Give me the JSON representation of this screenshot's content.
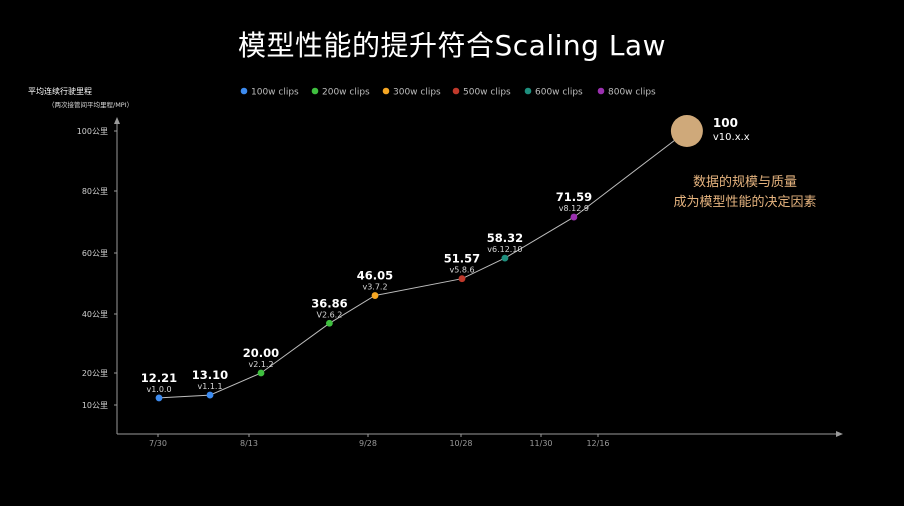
{
  "title": "模型性能的提升符合Scaling Law",
  "chart_data": {
    "type": "line",
    "ylabel": "平均连续行驶里程",
    "ylabel_sub": "（两次接管间平均里程/MPI）",
    "y_ticks": [
      {
        "label": "10公里",
        "value": 10
      },
      {
        "label": "20公里",
        "value": 20
      },
      {
        "label": "40公里",
        "value": 40
      },
      {
        "label": "60公里",
        "value": 60
      },
      {
        "label": "80公里",
        "value": 80
      },
      {
        "label": "100公里",
        "value": 100
      }
    ],
    "x_ticks": [
      "7/30",
      "8/13",
      "9/28",
      "10/28",
      "11/30",
      "12/16"
    ],
    "legend": [
      {
        "label": "100w clips",
        "color": "#3d8bef"
      },
      {
        "label": "200w clips",
        "color": "#3fbf3f"
      },
      {
        "label": "300w clips",
        "color": "#f5a623"
      },
      {
        "label": "500w clips",
        "color": "#c0392b"
      },
      {
        "label": "600w clips",
        "color": "#1e8f7e"
      },
      {
        "label": "800w clips",
        "color": "#9b30b0"
      }
    ],
    "points": [
      {
        "value": 12.21,
        "label": "12.21",
        "version": "v1.0.0",
        "color": "#3d8bef",
        "x_pos": 0.0
      },
      {
        "value": 13.1,
        "label": "13.10",
        "version": "v1.1.1",
        "color": "#3d8bef",
        "x_pos": 0.5
      },
      {
        "value": 20.0,
        "label": "20.00",
        "version": "v2.1.2",
        "color": "#3fbf3f",
        "x_pos": 1.0
      },
      {
        "value": 36.86,
        "label": "36.86",
        "version": "V2.6.2",
        "color": "#3fbf3f",
        "x_pos": 1.6
      },
      {
        "value": 46.05,
        "label": "46.05",
        "version": "v3.7.2",
        "color": "#f5a623",
        "x_pos": 2.0
      },
      {
        "value": 51.57,
        "label": "51.57",
        "version": "v5.8.6",
        "color": "#c0392b",
        "x_pos": 3.0
      },
      {
        "value": 58.32,
        "label": "58.32",
        "version": "v6.12.10",
        "color": "#1e8f7e",
        "x_pos": 3.55
      },
      {
        "value": 71.59,
        "label": "71.59",
        "version": "v8.12.9",
        "color": "#9b30b0",
        "x_pos": 4.3
      },
      {
        "value": 100,
        "label": "100",
        "version": "v10.x.x",
        "color": "#cfa97a",
        "x_pos": 5.3,
        "projected": true
      }
    ],
    "annotation": [
      "数据的规模与质量",
      "成为模型性能的决定因素"
    ]
  }
}
